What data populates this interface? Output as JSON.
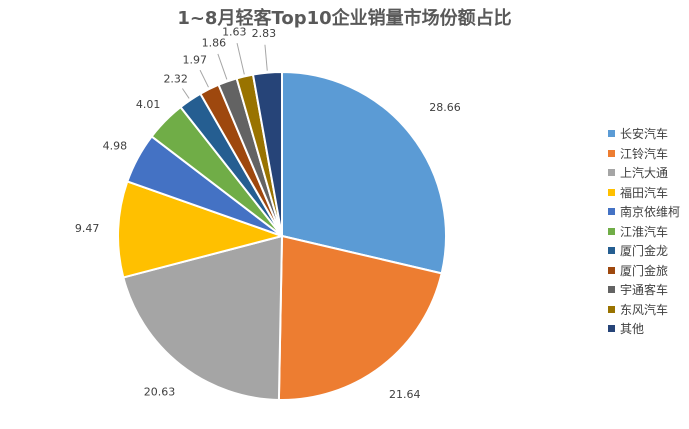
{
  "chart_data": {
    "type": "pie",
    "title": "1~8月轻客Top10企业销量市场份额占比",
    "legend_position": "right",
    "slices": [
      {
        "label": "长安汽车",
        "value": 28.66,
        "value_text": "28.66",
        "color": "#5b9bd5"
      },
      {
        "label": "江铃汽车",
        "value": 21.64,
        "value_text": "21.64",
        "color": "#ed7d31"
      },
      {
        "label": "上汽大通",
        "value": 20.63,
        "value_text": "20.63",
        "color": "#a5a5a5"
      },
      {
        "label": "福田汽车",
        "value": 9.47,
        "value_text": "9.47",
        "color": "#ffc000"
      },
      {
        "label": "南京依维柯",
        "value": 4.98,
        "value_text": "4.98",
        "color": "#4472c4"
      },
      {
        "label": "江淮汽车",
        "value": 4.01,
        "value_text": "4.01",
        "color": "#70ad47"
      },
      {
        "label": "厦门金龙",
        "value": 2.32,
        "value_text": "2.32",
        "color": "#255e91"
      },
      {
        "label": "厦门金旅",
        "value": 1.97,
        "value_text": "1.97",
        "color": "#9e480e"
      },
      {
        "label": "宇通客车",
        "value": 1.86,
        "value_text": "1.86",
        "color": "#636363"
      },
      {
        "label": "东风汽车",
        "value": 1.63,
        "value_text": "1.63",
        "color": "#997300"
      },
      {
        "label": "其他",
        "value": 2.83,
        "value_text": "2.83",
        "color": "#264478"
      }
    ]
  }
}
